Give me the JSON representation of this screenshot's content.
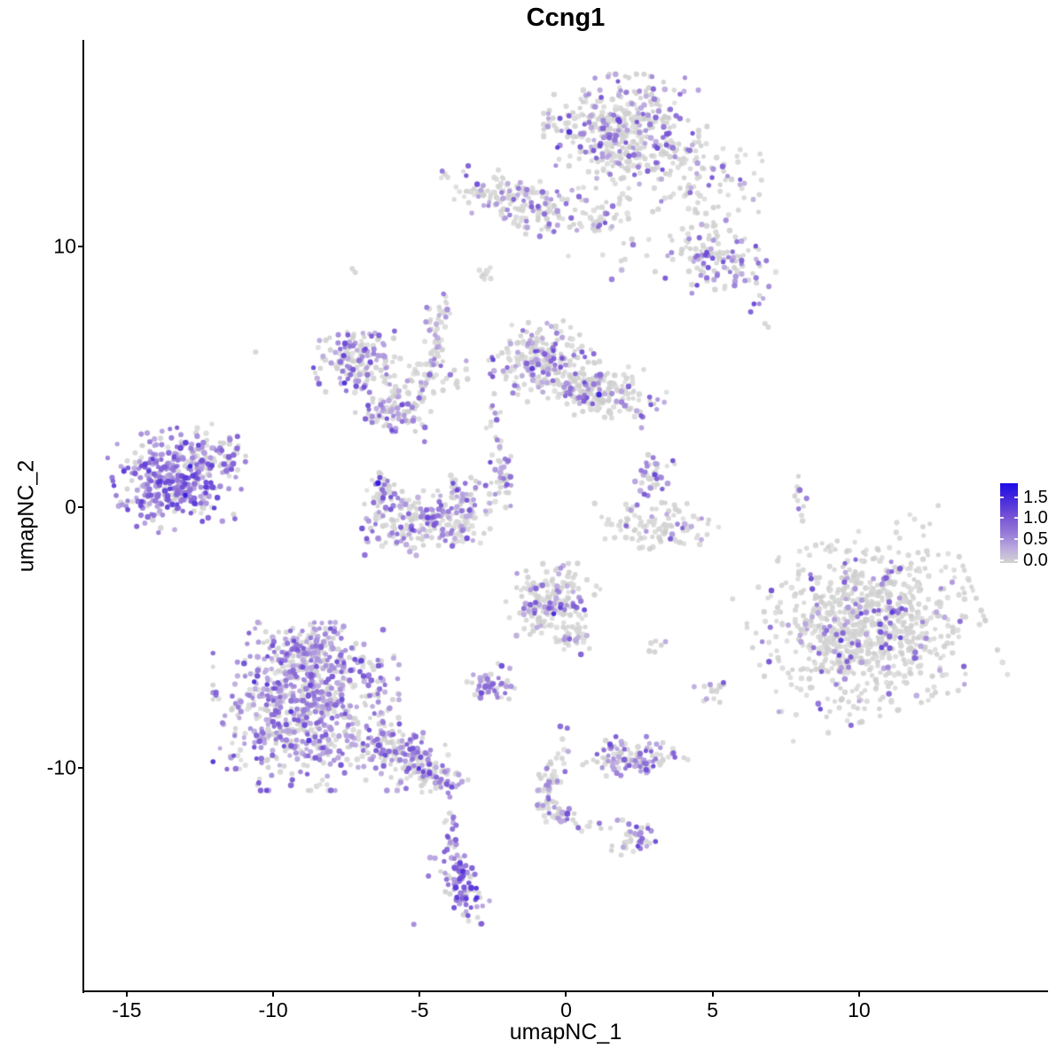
{
  "title": "Ccng1",
  "axes": {
    "x": {
      "label": "umapNC_1",
      "ticks": [
        "-15",
        "-10",
        "-5",
        "0",
        "5",
        "10"
      ],
      "tick_values": [
        -15,
        -10,
        -5,
        0,
        5,
        10
      ],
      "range": [
        -16.45,
        16.42
      ]
    },
    "y": {
      "label": "umapNC_2",
      "ticks": [
        "10",
        "0",
        "-10"
      ],
      "tick_values": [
        10,
        0,
        -10
      ],
      "range": [
        -18.57,
        17.92
      ]
    }
  },
  "legend": {
    "labels": [
      "1.5",
      "1.0",
      "0.5",
      "0.0"
    ],
    "values": [
      1.5,
      1.0,
      0.5,
      0.0
    ],
    "max_value": 1.8,
    "low_color": "#d3d3d3",
    "high_color": "#1c0de8"
  },
  "chart_data": {
    "type": "scatter",
    "title": "Ccng1",
    "xlabel": "umapNC_1",
    "ylabel": "umapNC_2",
    "xlim": [
      -16.45,
      16.42
    ],
    "ylim": [
      -18.57,
      17.92
    ],
    "grid": false,
    "legend_position": "right",
    "point_color_scale": [
      {
        "v": 0.0,
        "c": "#d3d3d3"
      },
      {
        "v": 0.33,
        "c": "#bcaade"
      },
      {
        "v": 0.63,
        "c": "#9a7fd9"
      },
      {
        "v": 1.0,
        "c": "#7a58d4"
      },
      {
        "v": 1.4,
        "c": "#4c2ddb"
      },
      {
        "v": 1.8,
        "c": "#1c0de8"
      }
    ],
    "seed": 1234567,
    "clusters": [
      {
        "name": "top-main",
        "cx": 1.88,
        "cy": 14.42,
        "sx": 1.15,
        "sy": 0.95,
        "rot": 0,
        "n": 420,
        "frac": 0.28,
        "lvl": 0.75
      },
      {
        "name": "top-tail",
        "cx": 4.61,
        "cy": 12.99,
        "sx": 1.1,
        "sy": 0.8,
        "rot": -0.5,
        "n": 90,
        "frac": 0.15,
        "lvl": 0.7
      },
      {
        "name": "top-scatter",
        "cx": 2.33,
        "cy": 10.78,
        "sx": 1.2,
        "sy": 1.2,
        "rot": 0,
        "n": 40,
        "frac": 0.18,
        "lvl": 0.6
      },
      {
        "name": "chain-left",
        "cx": -1.61,
        "cy": 11.63,
        "sx": 1.25,
        "sy": 0.45,
        "rot": -0.3,
        "n": 170,
        "frac": 0.28,
        "lvl": 0.75
      },
      {
        "name": "chain-knot",
        "cx": 1.12,
        "cy": 11.05,
        "sx": 0.36,
        "sy": 0.31,
        "rot": 0,
        "n": 30,
        "frac": 0.3,
        "lvl": 0.7
      },
      {
        "name": "arm-right",
        "cx": 5.15,
        "cy": 9.59,
        "sx": 0.9,
        "sy": 0.7,
        "rot": -0.4,
        "n": 130,
        "frac": 0.38,
        "lvl": 0.75
      },
      {
        "name": "dot-gray-upper",
        "cx": -2.82,
        "cy": 8.91,
        "sx": 0.16,
        "sy": 0.14,
        "rot": 0,
        "n": 9,
        "frac": 0,
        "lvl": 0
      },
      {
        "name": "string-up",
        "cx": -4.48,
        "cy": 6.6,
        "sx": 0.15,
        "sy": 0.62,
        "rot": 0,
        "n": 35,
        "frac": 0.2,
        "lvl": 0.7
      },
      {
        "name": "string-up2",
        "cx": -4.18,
        "cy": 7.72,
        "sx": 0.12,
        "sy": 0.35,
        "rot": 0,
        "n": 14,
        "frac": 0.3,
        "lvl": 0.7
      },
      {
        "name": "midleft-main",
        "cx": -7.06,
        "cy": 5.58,
        "sx": 0.68,
        "sy": 0.62,
        "rot": 0.3,
        "n": 160,
        "frac": 0.45,
        "lvl": 0.75
      },
      {
        "name": "midleft-arm",
        "cx": -5.85,
        "cy": 3.74,
        "sx": 0.58,
        "sy": 0.38,
        "rot": -0.3,
        "n": 90,
        "frac": 0.45,
        "lvl": 0.75
      },
      {
        "name": "midleft-east",
        "cx": -4.79,
        "cy": 5.0,
        "sx": 0.62,
        "sy": 0.45,
        "rot": 0,
        "n": 60,
        "frac": 0.2,
        "lvl": 0.65
      },
      {
        "name": "midcenter-main",
        "cx": -0.85,
        "cy": 5.58,
        "sx": 0.78,
        "sy": 0.7,
        "rot": 0,
        "n": 230,
        "frac": 0.3,
        "lvl": 0.75
      },
      {
        "name": "midcenter-east",
        "cx": 1.58,
        "cy": 4.32,
        "sx": 0.78,
        "sy": 0.5,
        "rot": -0.2,
        "n": 150,
        "frac": 0.3,
        "lvl": 0.8
      },
      {
        "name": "midcenter-bridge",
        "cx": 0.42,
        "cy": 4.76,
        "sx": 0.5,
        "sy": 0.36,
        "rot": 0,
        "n": 60,
        "frac": 0.25,
        "lvl": 0.7
      },
      {
        "name": "connector-string",
        "cx": -2.45,
        "cy": 2.62,
        "sx": 0.12,
        "sy": 0.9,
        "rot": 0,
        "n": 18,
        "frac": 0.3,
        "lvl": 0.7
      },
      {
        "name": "left-main",
        "cx": -13.33,
        "cy": 1.09,
        "sx": 0.92,
        "sy": 0.83,
        "rot": 0.2,
        "n": 380,
        "frac": 0.75,
        "lvl": 0.85
      },
      {
        "name": "left-trail",
        "cx": -11.82,
        "cy": 1.94,
        "sx": 0.5,
        "sy": 0.42,
        "rot": -0.5,
        "n": 40,
        "frac": 0.4,
        "lvl": 0.8
      },
      {
        "name": "crescent-tip",
        "cx": -6.24,
        "cy": 0.54,
        "sx": 0.28,
        "sy": 0.42,
        "rot": 0,
        "n": 40,
        "frac": 0.5,
        "lvl": 0.8
      },
      {
        "name": "crescent-bottom",
        "cx": -4.94,
        "cy": -0.61,
        "sx": 1.02,
        "sy": 0.54,
        "rot": 0,
        "n": 200,
        "frac": 0.4,
        "lvl": 0.75
      },
      {
        "name": "crescent-right",
        "cx": -3.48,
        "cy": 0.24,
        "sx": 0.46,
        "sy": 0.5,
        "rot": 0,
        "n": 70,
        "frac": 0.45,
        "lvl": 0.75
      },
      {
        "name": "mid-string",
        "cx": -2.15,
        "cy": 1.09,
        "sx": 0.15,
        "sy": 0.5,
        "rot": 0,
        "n": 30,
        "frac": 0.5,
        "lvl": 0.85
      },
      {
        "name": "rightmid-string",
        "cx": 2.88,
        "cy": 1.02,
        "sx": 0.26,
        "sy": 0.55,
        "rot": -0.3,
        "n": 45,
        "frac": 0.45,
        "lvl": 0.8
      },
      {
        "name": "rightmid-crescent",
        "cx": 3.09,
        "cy": -0.75,
        "sx": 0.92,
        "sy": 0.4,
        "rot": 0,
        "n": 100,
        "frac": 0.1,
        "lvl": 0.7
      },
      {
        "name": "tiny-string-right",
        "cx": 7.94,
        "cy": 0.51,
        "sx": 0.12,
        "sy": 0.45,
        "rot": 0,
        "n": 12,
        "frac": 0.45,
        "lvl": 0.8
      },
      {
        "name": "right-big",
        "cx": 10.21,
        "cy": -4.52,
        "sx": 1.7,
        "sy": 1.5,
        "rot": 0.35,
        "n": 900,
        "frac": 0.12,
        "lvl": 0.85
      },
      {
        "name": "center-small",
        "cx": -0.48,
        "cy": -3.61,
        "sx": 0.72,
        "sy": 0.63,
        "rot": 0,
        "n": 170,
        "frac": 0.3,
        "lvl": 0.75
      },
      {
        "name": "center-small-arm",
        "cx": 0.21,
        "cy": -4.97,
        "sx": 0.36,
        "sy": 0.3,
        "rot": 0,
        "n": 40,
        "frac": 0.25,
        "lvl": 0.7
      },
      {
        "name": "small-pair",
        "cx": -2.61,
        "cy": -6.8,
        "sx": 0.37,
        "sy": 0.35,
        "rot": 0,
        "n": 50,
        "frac": 0.5,
        "lvl": 0.75
      },
      {
        "name": "botleft-main",
        "cx": -8.88,
        "cy": -7.76,
        "sx": 1.38,
        "sy": 1.35,
        "rot": 0,
        "n": 700,
        "frac": 0.55,
        "lvl": 0.75
      },
      {
        "name": "botleft-top",
        "cx": -8.73,
        "cy": -5.71,
        "sx": 0.78,
        "sy": 0.56,
        "rot": 0,
        "n": 180,
        "frac": 0.5,
        "lvl": 0.75
      },
      {
        "name": "botleft-arm",
        "cx": -5.64,
        "cy": -9.46,
        "sx": 0.78,
        "sy": 0.47,
        "rot": -0.5,
        "n": 150,
        "frac": 0.5,
        "lvl": 0.75
      },
      {
        "name": "botleft-tail",
        "cx": -4.42,
        "cy": -10.34,
        "sx": 0.46,
        "sy": 0.3,
        "rot": -0.4,
        "n": 60,
        "frac": 0.5,
        "lvl": 0.75
      },
      {
        "name": "tail-string",
        "cx": -3.94,
        "cy": -11.84,
        "sx": 0.12,
        "sy": 0.56,
        "rot": 0,
        "n": 14,
        "frac": 0.4,
        "lvl": 0.75
      },
      {
        "name": "bottom-blob",
        "cx": -3.58,
        "cy": -14.39,
        "sx": 0.32,
        "sy": 0.75,
        "rot": 0.3,
        "n": 95,
        "frac": 0.85,
        "lvl": 0.9
      },
      {
        "name": "botcenter-string",
        "cx": -0.55,
        "cy": -10.65,
        "sx": 0.2,
        "sy": 0.98,
        "rot": -0.25,
        "n": 55,
        "frac": 0.3,
        "lvl": 0.75
      },
      {
        "name": "botcenter-knot",
        "cx": -0.3,
        "cy": -11.77,
        "sx": 0.26,
        "sy": 0.2,
        "rot": 0,
        "n": 25,
        "frac": 0.5,
        "lvl": 0.8
      },
      {
        "name": "botcenter-trail",
        "cx": 0.91,
        "cy": -12.24,
        "sx": 0.36,
        "sy": 0.12,
        "rot": -0.2,
        "n": 10,
        "frac": 0.2,
        "lvl": 0.7
      },
      {
        "name": "bot-small",
        "cx": 2.36,
        "cy": -12.69,
        "sx": 0.37,
        "sy": 0.3,
        "rot": 0,
        "n": 45,
        "frac": 0.45,
        "lvl": 0.8
      },
      {
        "name": "mid-small-right",
        "cx": 2.36,
        "cy": -9.63,
        "sx": 0.78,
        "sy": 0.36,
        "rot": 0,
        "n": 120,
        "frac": 0.45,
        "lvl": 0.75
      },
      {
        "name": "dots-right",
        "cx": 4.91,
        "cy": -7.07,
        "sx": 0.26,
        "sy": 0.26,
        "rot": 0,
        "n": 16,
        "frac": 0.4,
        "lvl": 0.75
      },
      {
        "name": "dot-mid",
        "cx": 3.15,
        "cy": -5.34,
        "sx": 0.16,
        "sy": 0.15,
        "rot": 0,
        "n": 7,
        "frac": 0.3,
        "lvl": 0.7
      }
    ],
    "singles": [
      {
        "x": -6.42,
        "y": 0.92,
        "v": 1.65
      },
      {
        "x": -3.88,
        "y": -12.35,
        "v": 0.8
      },
      {
        "x": -4.7,
        "y": -14.15,
        "v": 0.75
      },
      {
        "x": -5.2,
        "y": -16.0,
        "v": 0.55
      },
      {
        "x": -10.6,
        "y": 5.95,
        "v": 0
      },
      {
        "x": -7.3,
        "y": 9.15,
        "v": 0
      },
      {
        "x": -7.2,
        "y": 9.0,
        "v": 0
      },
      {
        "x": 6.79,
        "y": 7.04,
        "v": 0
      },
      {
        "x": 6.9,
        "y": 6.9,
        "v": 0
      }
    ]
  }
}
